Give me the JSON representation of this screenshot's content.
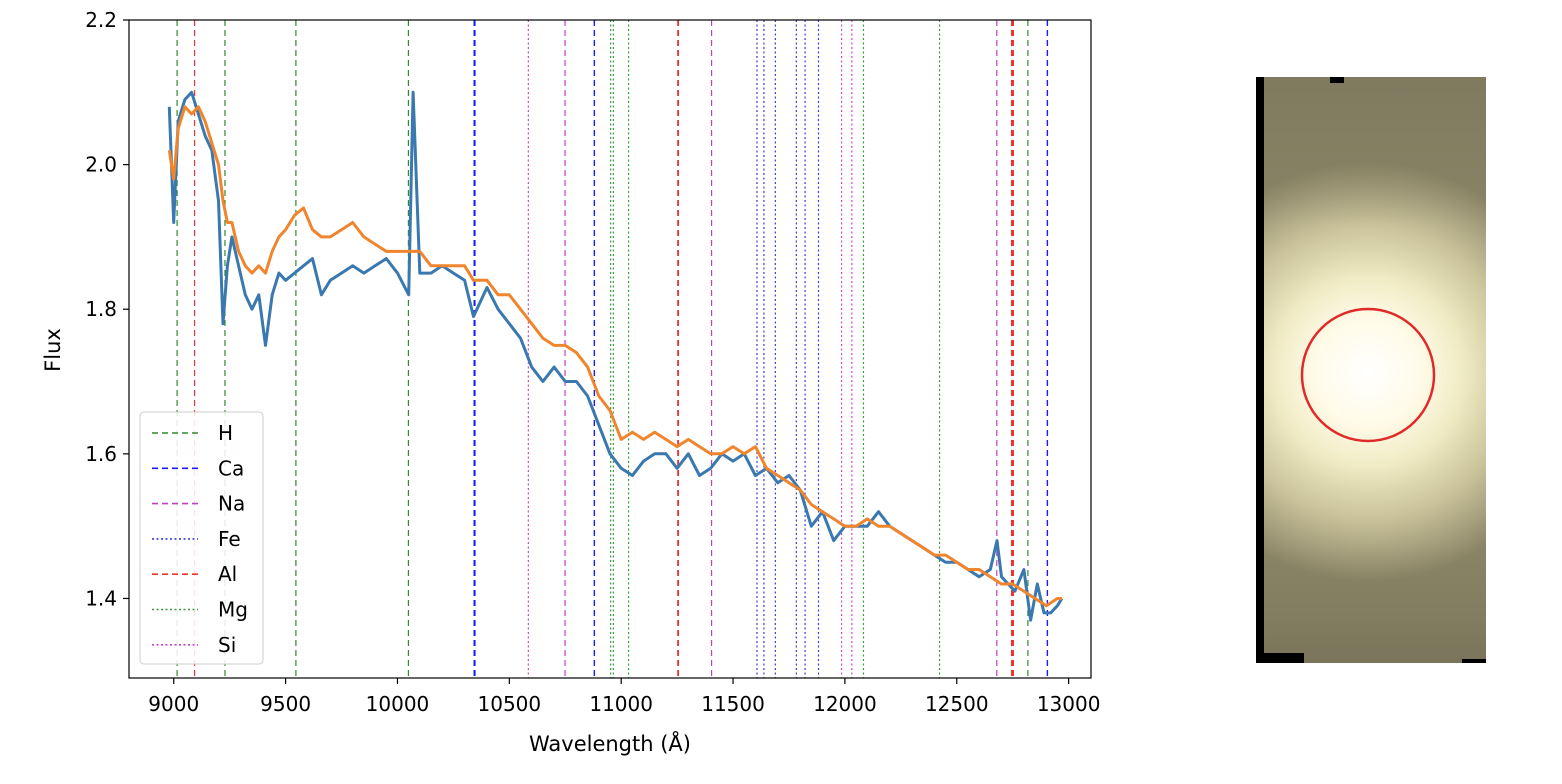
{
  "chart_data": [
    {
      "type": "line",
      "xlabel": "Wavelength (Å)",
      "ylabel": "Flux",
      "xlim": [
        8800,
        13100
      ],
      "ylim": [
        1.29,
        2.2
      ],
      "x_ticks": [
        9000,
        9500,
        10000,
        10500,
        11000,
        11500,
        12000,
        12500,
        13000
      ],
      "y_ticks": [
        1.4,
        1.6,
        1.8,
        2.0,
        2.2
      ],
      "x_tick_labels": [
        "9000",
        "9500",
        "10000",
        "10500",
        "11000",
        "11500",
        "12000",
        "12500",
        "13000"
      ],
      "y_tick_labels": [
        "1.4",
        "1.6",
        "1.8",
        "2.0",
        "2.2"
      ],
      "grid": false,
      "legend_position": "bottom-left",
      "series": [
        {
          "color": "#3a78b0",
          "x": [
            8980,
            9000,
            9020,
            9050,
            9080,
            9110,
            9140,
            9170,
            9200,
            9220,
            9240,
            9260,
            9290,
            9320,
            9350,
            9380,
            9410,
            9440,
            9470,
            9500,
            9540,
            9580,
            9620,
            9660,
            9700,
            9750,
            9800,
            9850,
            9900,
            9950,
            10000,
            10050,
            10070,
            10100,
            10150,
            10200,
            10250,
            10300,
            10340,
            10400,
            10450,
            10500,
            10550,
            10600,
            10650,
            10700,
            10750,
            10800,
            10850,
            10900,
            10950,
            11000,
            11050,
            11100,
            11150,
            11200,
            11250,
            11300,
            11350,
            11400,
            11450,
            11500,
            11550,
            11600,
            11650,
            11700,
            11750,
            11800,
            11850,
            11900,
            11950,
            12000,
            12050,
            12100,
            12150,
            12200,
            12250,
            12300,
            12350,
            12400,
            12450,
            12500,
            12550,
            12600,
            12650,
            12680,
            12700,
            12730,
            12760,
            12800,
            12830,
            12860,
            12890,
            12920,
            12950,
            12970
          ],
          "y": [
            2.08,
            1.92,
            2.06,
            2.09,
            2.1,
            2.07,
            2.04,
            2.02,
            1.95,
            1.78,
            1.86,
            1.9,
            1.86,
            1.82,
            1.8,
            1.82,
            1.75,
            1.82,
            1.85,
            1.84,
            1.85,
            1.86,
            1.87,
            1.82,
            1.84,
            1.85,
            1.86,
            1.85,
            1.86,
            1.87,
            1.85,
            1.82,
            2.1,
            1.85,
            1.85,
            1.86,
            1.85,
            1.84,
            1.79,
            1.83,
            1.8,
            1.78,
            1.76,
            1.72,
            1.7,
            1.72,
            1.7,
            1.7,
            1.68,
            1.64,
            1.6,
            1.58,
            1.57,
            1.59,
            1.6,
            1.6,
            1.58,
            1.6,
            1.57,
            1.58,
            1.6,
            1.59,
            1.6,
            1.57,
            1.58,
            1.56,
            1.57,
            1.55,
            1.5,
            1.52,
            1.48,
            1.5,
            1.5,
            1.5,
            1.52,
            1.5,
            1.49,
            1.48,
            1.47,
            1.46,
            1.45,
            1.45,
            1.44,
            1.43,
            1.44,
            1.48,
            1.43,
            1.42,
            1.41,
            1.44,
            1.37,
            1.42,
            1.38,
            1.38,
            1.39,
            1.4
          ]
        },
        {
          "color": "#f0852d",
          "x": [
            8980,
            9000,
            9020,
            9050,
            9080,
            9110,
            9140,
            9170,
            9200,
            9220,
            9240,
            9260,
            9290,
            9320,
            9350,
            9380,
            9410,
            9440,
            9470,
            9500,
            9540,
            9580,
            9620,
            9660,
            9700,
            9750,
            9800,
            9850,
            9900,
            9950,
            10000,
            10050,
            10100,
            10150,
            10200,
            10250,
            10300,
            10340,
            10400,
            10450,
            10500,
            10550,
            10600,
            10650,
            10700,
            10750,
            10800,
            10850,
            10900,
            10950,
            11000,
            11050,
            11100,
            11150,
            11200,
            11250,
            11300,
            11350,
            11400,
            11450,
            11500,
            11550,
            11600,
            11650,
            11700,
            11750,
            11800,
            11850,
            11900,
            11950,
            12000,
            12050,
            12100,
            12150,
            12200,
            12250,
            12300,
            12350,
            12400,
            12450,
            12500,
            12550,
            12600,
            12650,
            12700,
            12750,
            12800,
            12850,
            12900,
            12950,
            12970
          ],
          "y": [
            2.02,
            1.98,
            2.05,
            2.08,
            2.07,
            2.08,
            2.06,
            2.03,
            2.0,
            1.95,
            1.92,
            1.92,
            1.88,
            1.86,
            1.85,
            1.86,
            1.85,
            1.88,
            1.9,
            1.91,
            1.93,
            1.94,
            1.91,
            1.9,
            1.9,
            1.91,
            1.92,
            1.9,
            1.89,
            1.88,
            1.88,
            1.88,
            1.88,
            1.86,
            1.86,
            1.86,
            1.86,
            1.84,
            1.84,
            1.82,
            1.82,
            1.8,
            1.78,
            1.76,
            1.75,
            1.75,
            1.74,
            1.72,
            1.68,
            1.66,
            1.62,
            1.63,
            1.62,
            1.63,
            1.62,
            1.61,
            1.62,
            1.61,
            1.6,
            1.6,
            1.61,
            1.6,
            1.61,
            1.58,
            1.57,
            1.56,
            1.55,
            1.53,
            1.52,
            1.51,
            1.5,
            1.5,
            1.51,
            1.5,
            1.5,
            1.49,
            1.48,
            1.47,
            1.46,
            1.46,
            1.45,
            1.44,
            1.44,
            1.43,
            1.42,
            1.42,
            1.41,
            1.4,
            1.39,
            1.4,
            1.4
          ]
        }
      ],
      "line_groups": [
        {
          "name": "H",
          "color": "#2f8a2f",
          "dash": "dashed",
          "width": 1.2,
          "x": [
            9015,
            9229,
            9546,
            10049,
            12818
          ]
        },
        {
          "name": "Ca",
          "color": "#1a1aff",
          "dash": "dashed",
          "width": 1.4,
          "x": [
            10343,
            10346,
            10880,
            12905
          ]
        },
        {
          "name": "Na",
          "color": "#c040c0",
          "dash": "dashed",
          "width": 1.2,
          "x": [
            10749,
            11404,
            12679
          ]
        },
        {
          "name": "Fe",
          "color": "#3a3adf",
          "dash": "dotted",
          "width": 1.2,
          "x": [
            11607,
            11638,
            11689,
            11783,
            11822,
            11882
          ]
        },
        {
          "name": "Al",
          "color": "#ee3333",
          "dash": "dashed",
          "width": 1.2,
          "x": [
            9093,
            11253,
            11256,
            12745,
            12749,
            12753
          ]
        },
        {
          "name": "Mg",
          "color": "#3a9a3a",
          "dash": "dotted",
          "width": 1.2,
          "x": [
            10953,
            10965,
            11033,
            12083,
            12423
          ]
        },
        {
          "name": "Si",
          "color": "#cc44cc",
          "dash": "dotted",
          "width": 1.2,
          "x": [
            10585,
            11985,
            12031
          ]
        }
      ],
      "legend": [
        "H",
        "Ca",
        "Na",
        "Fe",
        "Al",
        "Mg",
        "Si"
      ]
    }
  ],
  "thumbnail": {
    "colors": {
      "frame": "#000000",
      "background": "#8a8466",
      "glow": "#fffbe8",
      "aperture": "#e02a2a"
    }
  }
}
